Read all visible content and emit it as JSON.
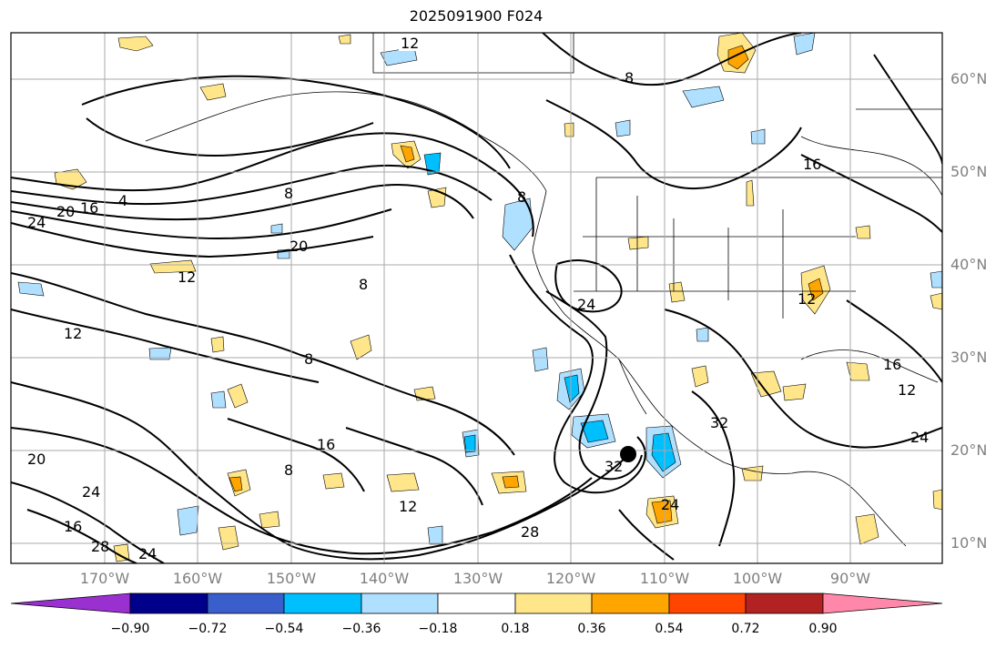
{
  "title": "2025091900 F024",
  "latitude_labels": [
    "60°N",
    "50°N",
    "40°N",
    "30°N",
    "20°N",
    "10°N"
  ],
  "longitude_labels": [
    "170°W",
    "160°W",
    "150°W",
    "140°W",
    "130°W",
    "120°W",
    "110°W",
    "100°W",
    "90°W"
  ],
  "contour_labels": [
    "4",
    "8",
    "12",
    "16",
    "20",
    "24",
    "28",
    "32"
  ],
  "colorbar": {
    "ticks": [
      "−0.90",
      "−0.72",
      "−0.54",
      "−0.36",
      "−0.18",
      "0.18",
      "0.36",
      "0.54",
      "0.72",
      "0.90"
    ],
    "colors": [
      "#9b30d0",
      "#00008b",
      "#3a5fcd",
      "#00bfff",
      "#b0e0ff",
      "#ffffff",
      "#ffe68a",
      "#ffa500",
      "#ff4500",
      "#b22222",
      "#ff88aa"
    ]
  },
  "storm_marker": {
    "name": "storm-center",
    "color": "#000000"
  }
}
